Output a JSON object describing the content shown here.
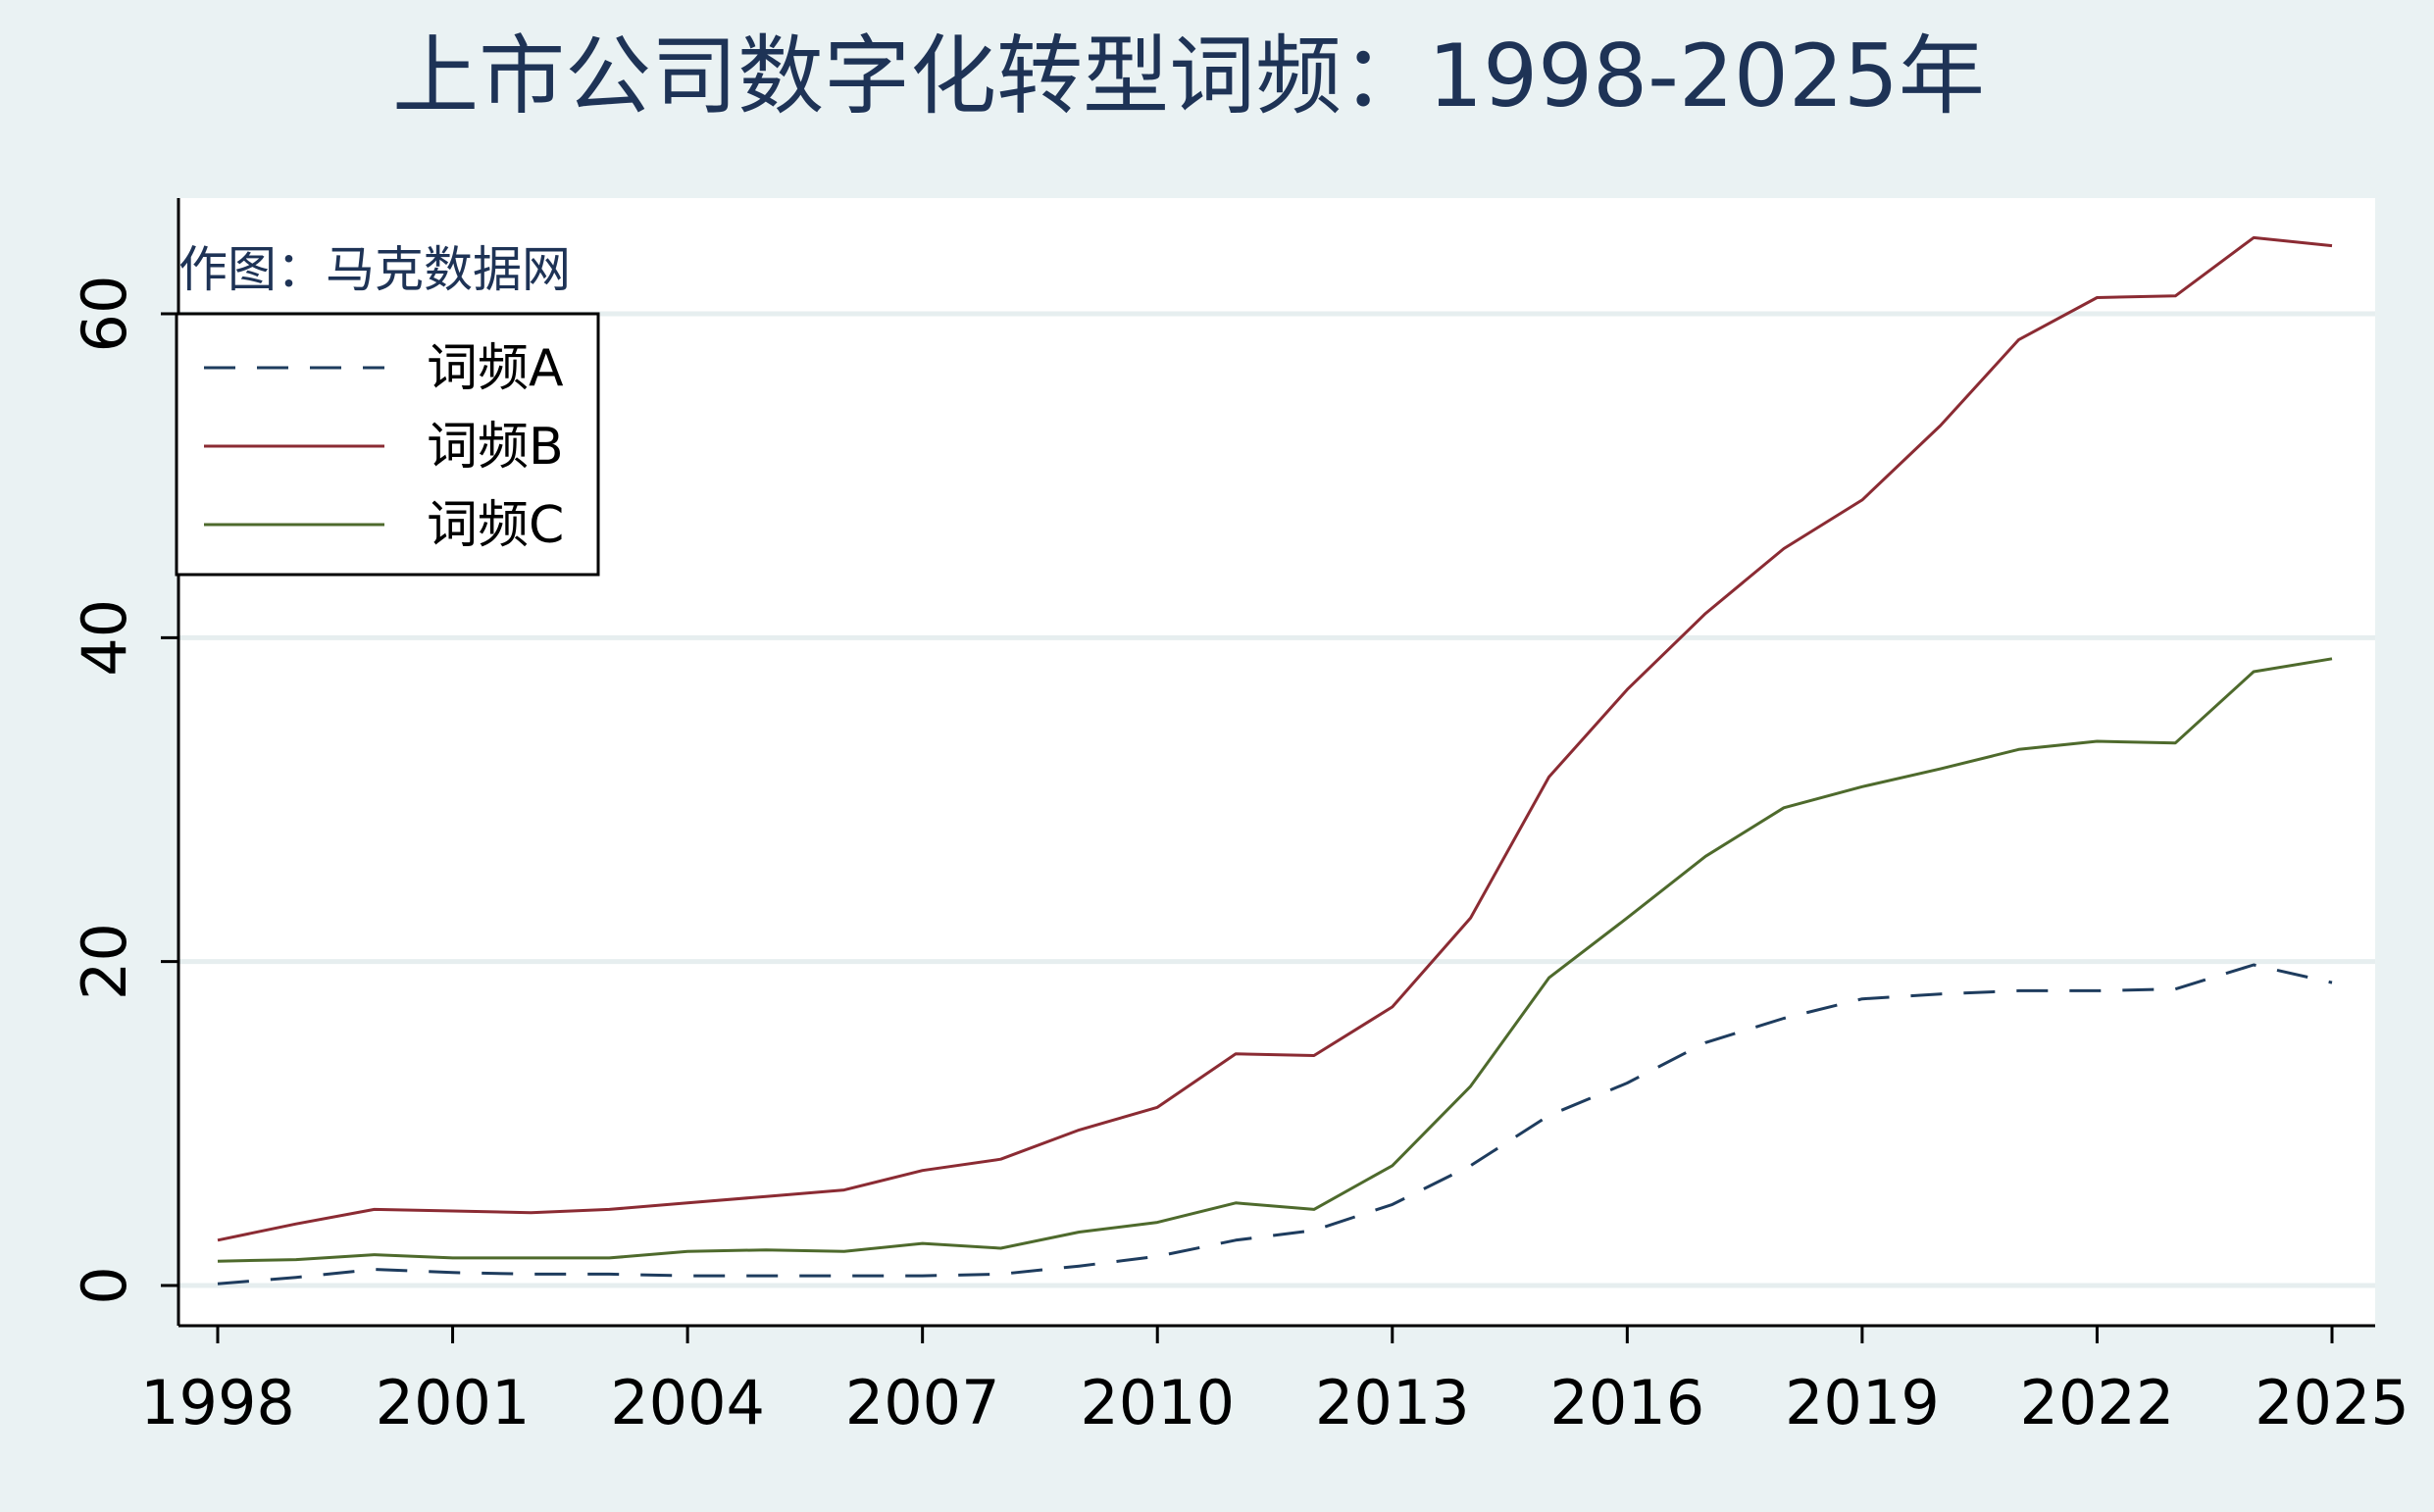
{
  "chart_data": {
    "type": "line",
    "title": "上市公司数字化转型词频：1998-2025年",
    "note": "作图：马克数据网",
    "xlabel": "",
    "ylabel": "",
    "xlim": [
      1998,
      2025
    ],
    "ylim": [
      0,
      65
    ],
    "x_ticks": [
      "1998",
      "2001",
      "2004",
      "2007",
      "2010",
      "2013",
      "2016",
      "2019",
      "2022",
      "2025"
    ],
    "y_ticks": [
      "0",
      "20",
      "40",
      "60"
    ],
    "grid": true,
    "legend_position": "top-left",
    "x": [
      1998,
      1999,
      2000,
      2001,
      2002,
      2003,
      2004,
      2005,
      2006,
      2007,
      2008,
      2009,
      2010,
      2011,
      2012,
      2013,
      2014,
      2015,
      2016,
      2017,
      2018,
      2019,
      2020,
      2021,
      2022,
      2023,
      2024,
      2025
    ],
    "series": [
      {
        "name": "词频A",
        "color": "#1e3c5e",
        "dash": true,
        "values": [
          0.1,
          0.5,
          1.0,
          0.8,
          0.7,
          0.7,
          0.6,
          0.6,
          0.6,
          0.6,
          0.7,
          1.2,
          1.8,
          2.8,
          3.4,
          5.0,
          7.4,
          10.5,
          12.5,
          15.0,
          16.5,
          17.7,
          18.0,
          18.2,
          18.2,
          18.3,
          19.8,
          18.7
        ]
      },
      {
        "name": "词频B",
        "color": "#8b2b33",
        "dash": false,
        "values": [
          2.8,
          3.8,
          4.7,
          4.6,
          4.5,
          4.7,
          5.1,
          5.5,
          5.9,
          7.1,
          7.8,
          9.6,
          11.0,
          14.3,
          14.2,
          17.2,
          22.7,
          31.4,
          36.8,
          41.5,
          45.5,
          48.5,
          53.1,
          58.4,
          61.0,
          61.1,
          64.7,
          64.2
        ]
      },
      {
        "name": "词频C",
        "color": "#4e6a2c",
        "dash": false,
        "values": [
          1.5,
          1.6,
          1.9,
          1.7,
          1.7,
          1.7,
          2.1,
          2.2,
          2.1,
          2.6,
          2.3,
          3.3,
          3.9,
          5.1,
          4.7,
          7.4,
          12.3,
          19.0,
          22.7,
          26.5,
          29.5,
          30.8,
          31.9,
          33.1,
          33.6,
          33.5,
          37.9,
          38.7
        ]
      }
    ]
  }
}
